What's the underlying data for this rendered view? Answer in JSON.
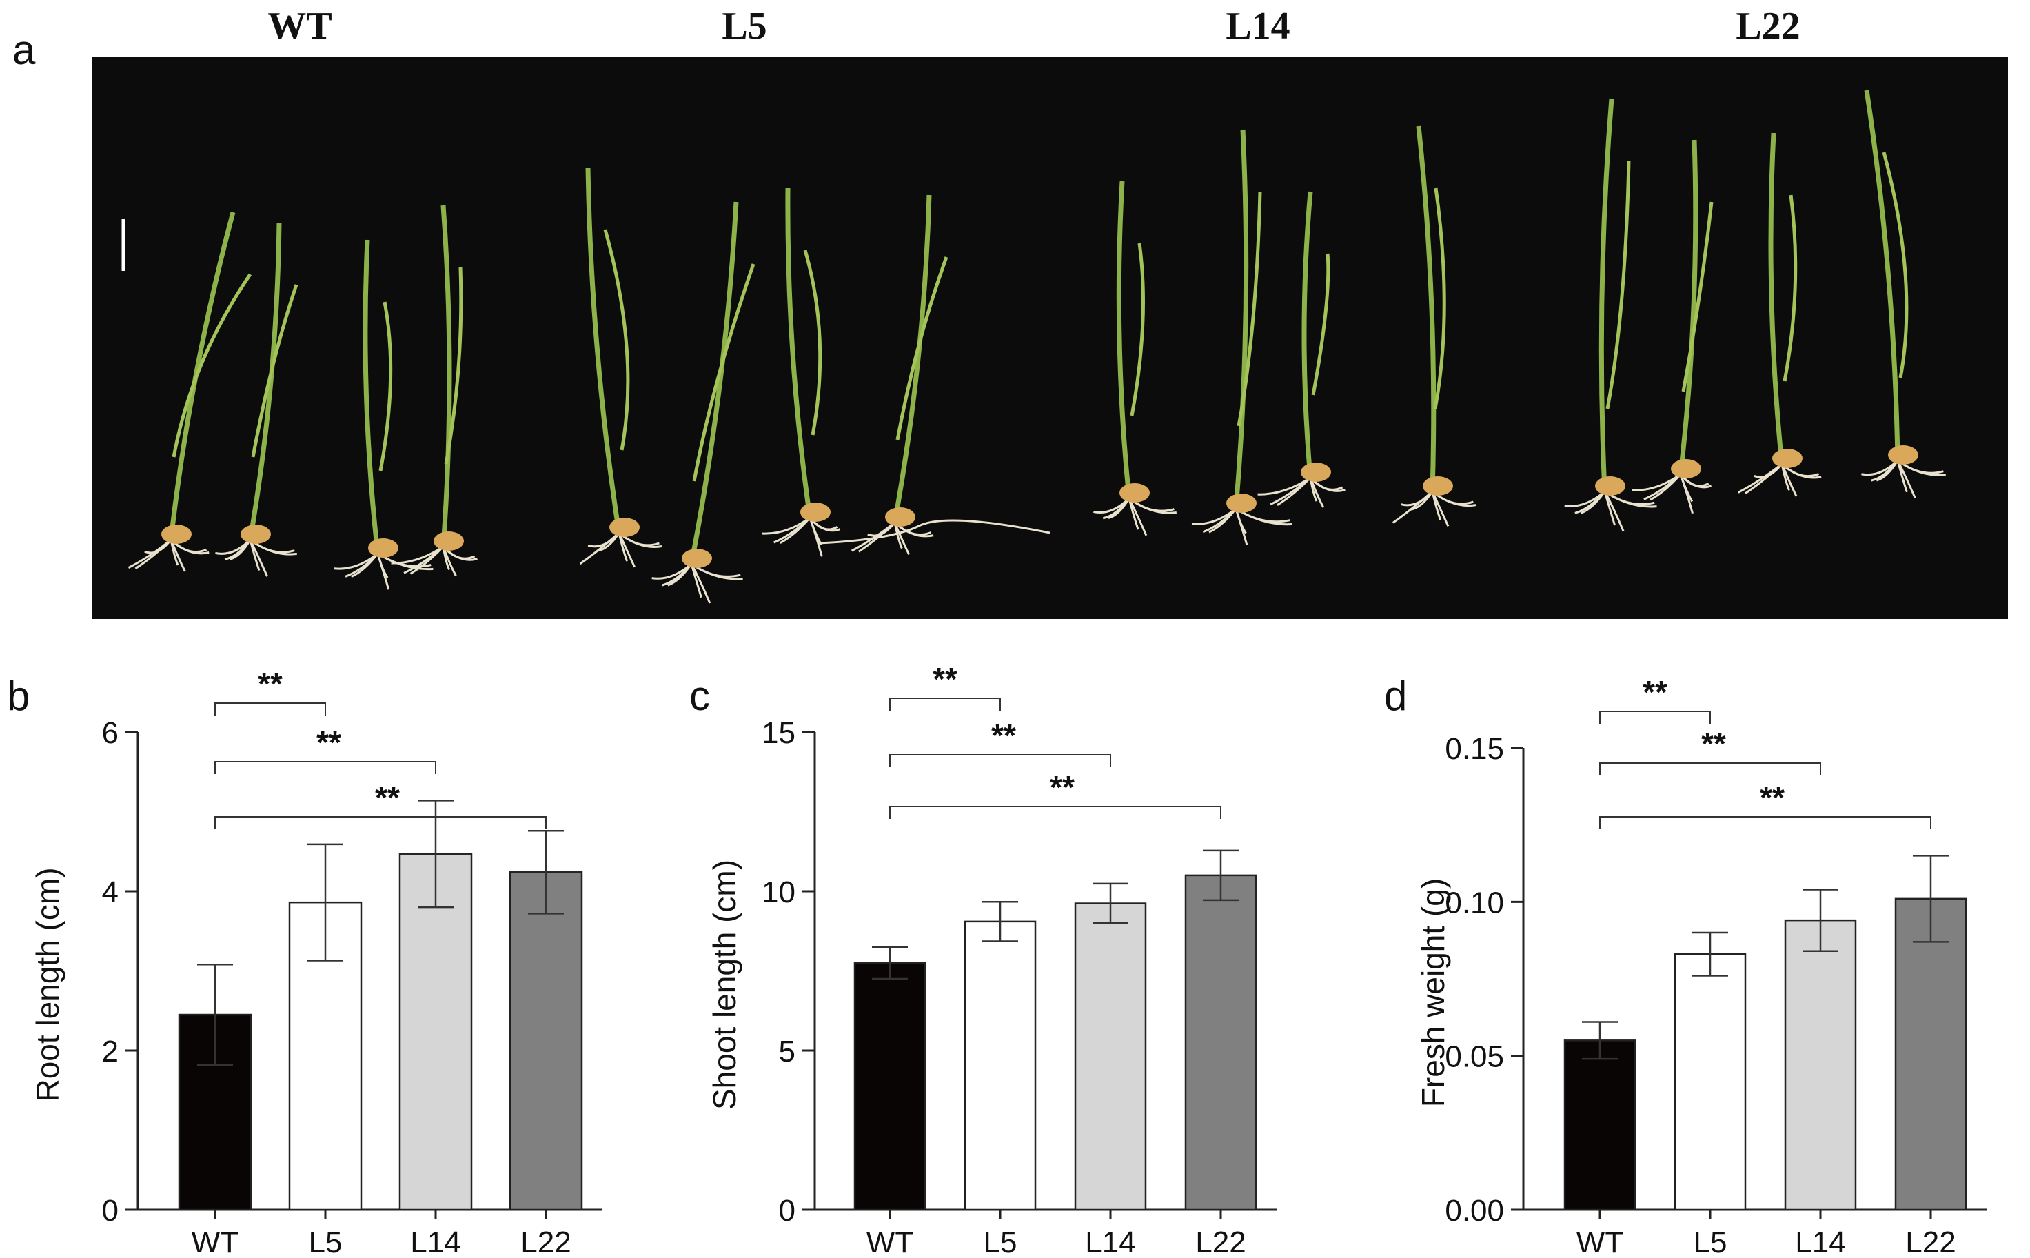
{
  "panel_letters": {
    "a": "a",
    "b": "b",
    "c": "c",
    "d": "d"
  },
  "photo": {
    "group_labels": [
      "WT",
      "L5",
      "L14",
      "L22"
    ]
  },
  "colors": {
    "WT": "#0a0505",
    "L5": "#ffffff",
    "L14": "#d6d6d6",
    "L22": "#808080",
    "background_photo": "#0c0c0c",
    "leaf": "#8eb24a",
    "root": "#e8e2cf",
    "seed": "#d9a85a"
  },
  "chart_data": [
    {
      "type": "bar",
      "categories": [
        "WT",
        "L5",
        "L14",
        "L22"
      ],
      "values": [
        2.45,
        3.86,
        4.47,
        4.24
      ],
      "errors": [
        0.63,
        0.73,
        0.67,
        0.52
      ],
      "ylabel": "Root length (cm)",
      "ylim": [
        0,
        6
      ],
      "yticks": [
        0,
        2,
        4,
        6
      ],
      "ytick_labels": [
        "0",
        "2",
        "4",
        "6"
      ],
      "significance": [
        {
          "from": "WT",
          "to": "L5",
          "label": "**"
        },
        {
          "from": "WT",
          "to": "L14",
          "label": "**"
        },
        {
          "from": "WT",
          "to": "L22",
          "label": "**"
        }
      ]
    },
    {
      "type": "bar",
      "categories": [
        "WT",
        "L5",
        "L14",
        "L22"
      ],
      "values": [
        7.75,
        9.05,
        9.62,
        10.5
      ],
      "errors": [
        0.5,
        0.62,
        0.62,
        0.78
      ],
      "ylabel": "Shoot length (cm)",
      "ylim": [
        0,
        15
      ],
      "yticks": [
        0,
        5,
        10,
        15
      ],
      "ytick_labels": [
        "0",
        "5",
        "10",
        "15"
      ],
      "significance": [
        {
          "from": "WT",
          "to": "L5",
          "label": "**"
        },
        {
          "from": "WT",
          "to": "L14",
          "label": "**"
        },
        {
          "from": "WT",
          "to": "L22",
          "label": "**"
        }
      ]
    },
    {
      "type": "bar",
      "categories": [
        "WT",
        "L5",
        "L14",
        "L22"
      ],
      "values": [
        0.055,
        0.083,
        0.094,
        0.101
      ],
      "errors": [
        0.006,
        0.007,
        0.01,
        0.014
      ],
      "ylabel": "Fresh weight (g)",
      "ylim": [
        0,
        0.15
      ],
      "yticks": [
        0,
        0.05,
        0.1,
        0.15
      ],
      "ytick_labels": [
        "0.00",
        "0.05",
        "0.10",
        "0.15"
      ],
      "significance": [
        {
          "from": "WT",
          "to": "L5",
          "label": "**"
        },
        {
          "from": "WT",
          "to": "L14",
          "label": "**"
        },
        {
          "from": "WT",
          "to": "L22",
          "label": "**"
        }
      ]
    }
  ]
}
